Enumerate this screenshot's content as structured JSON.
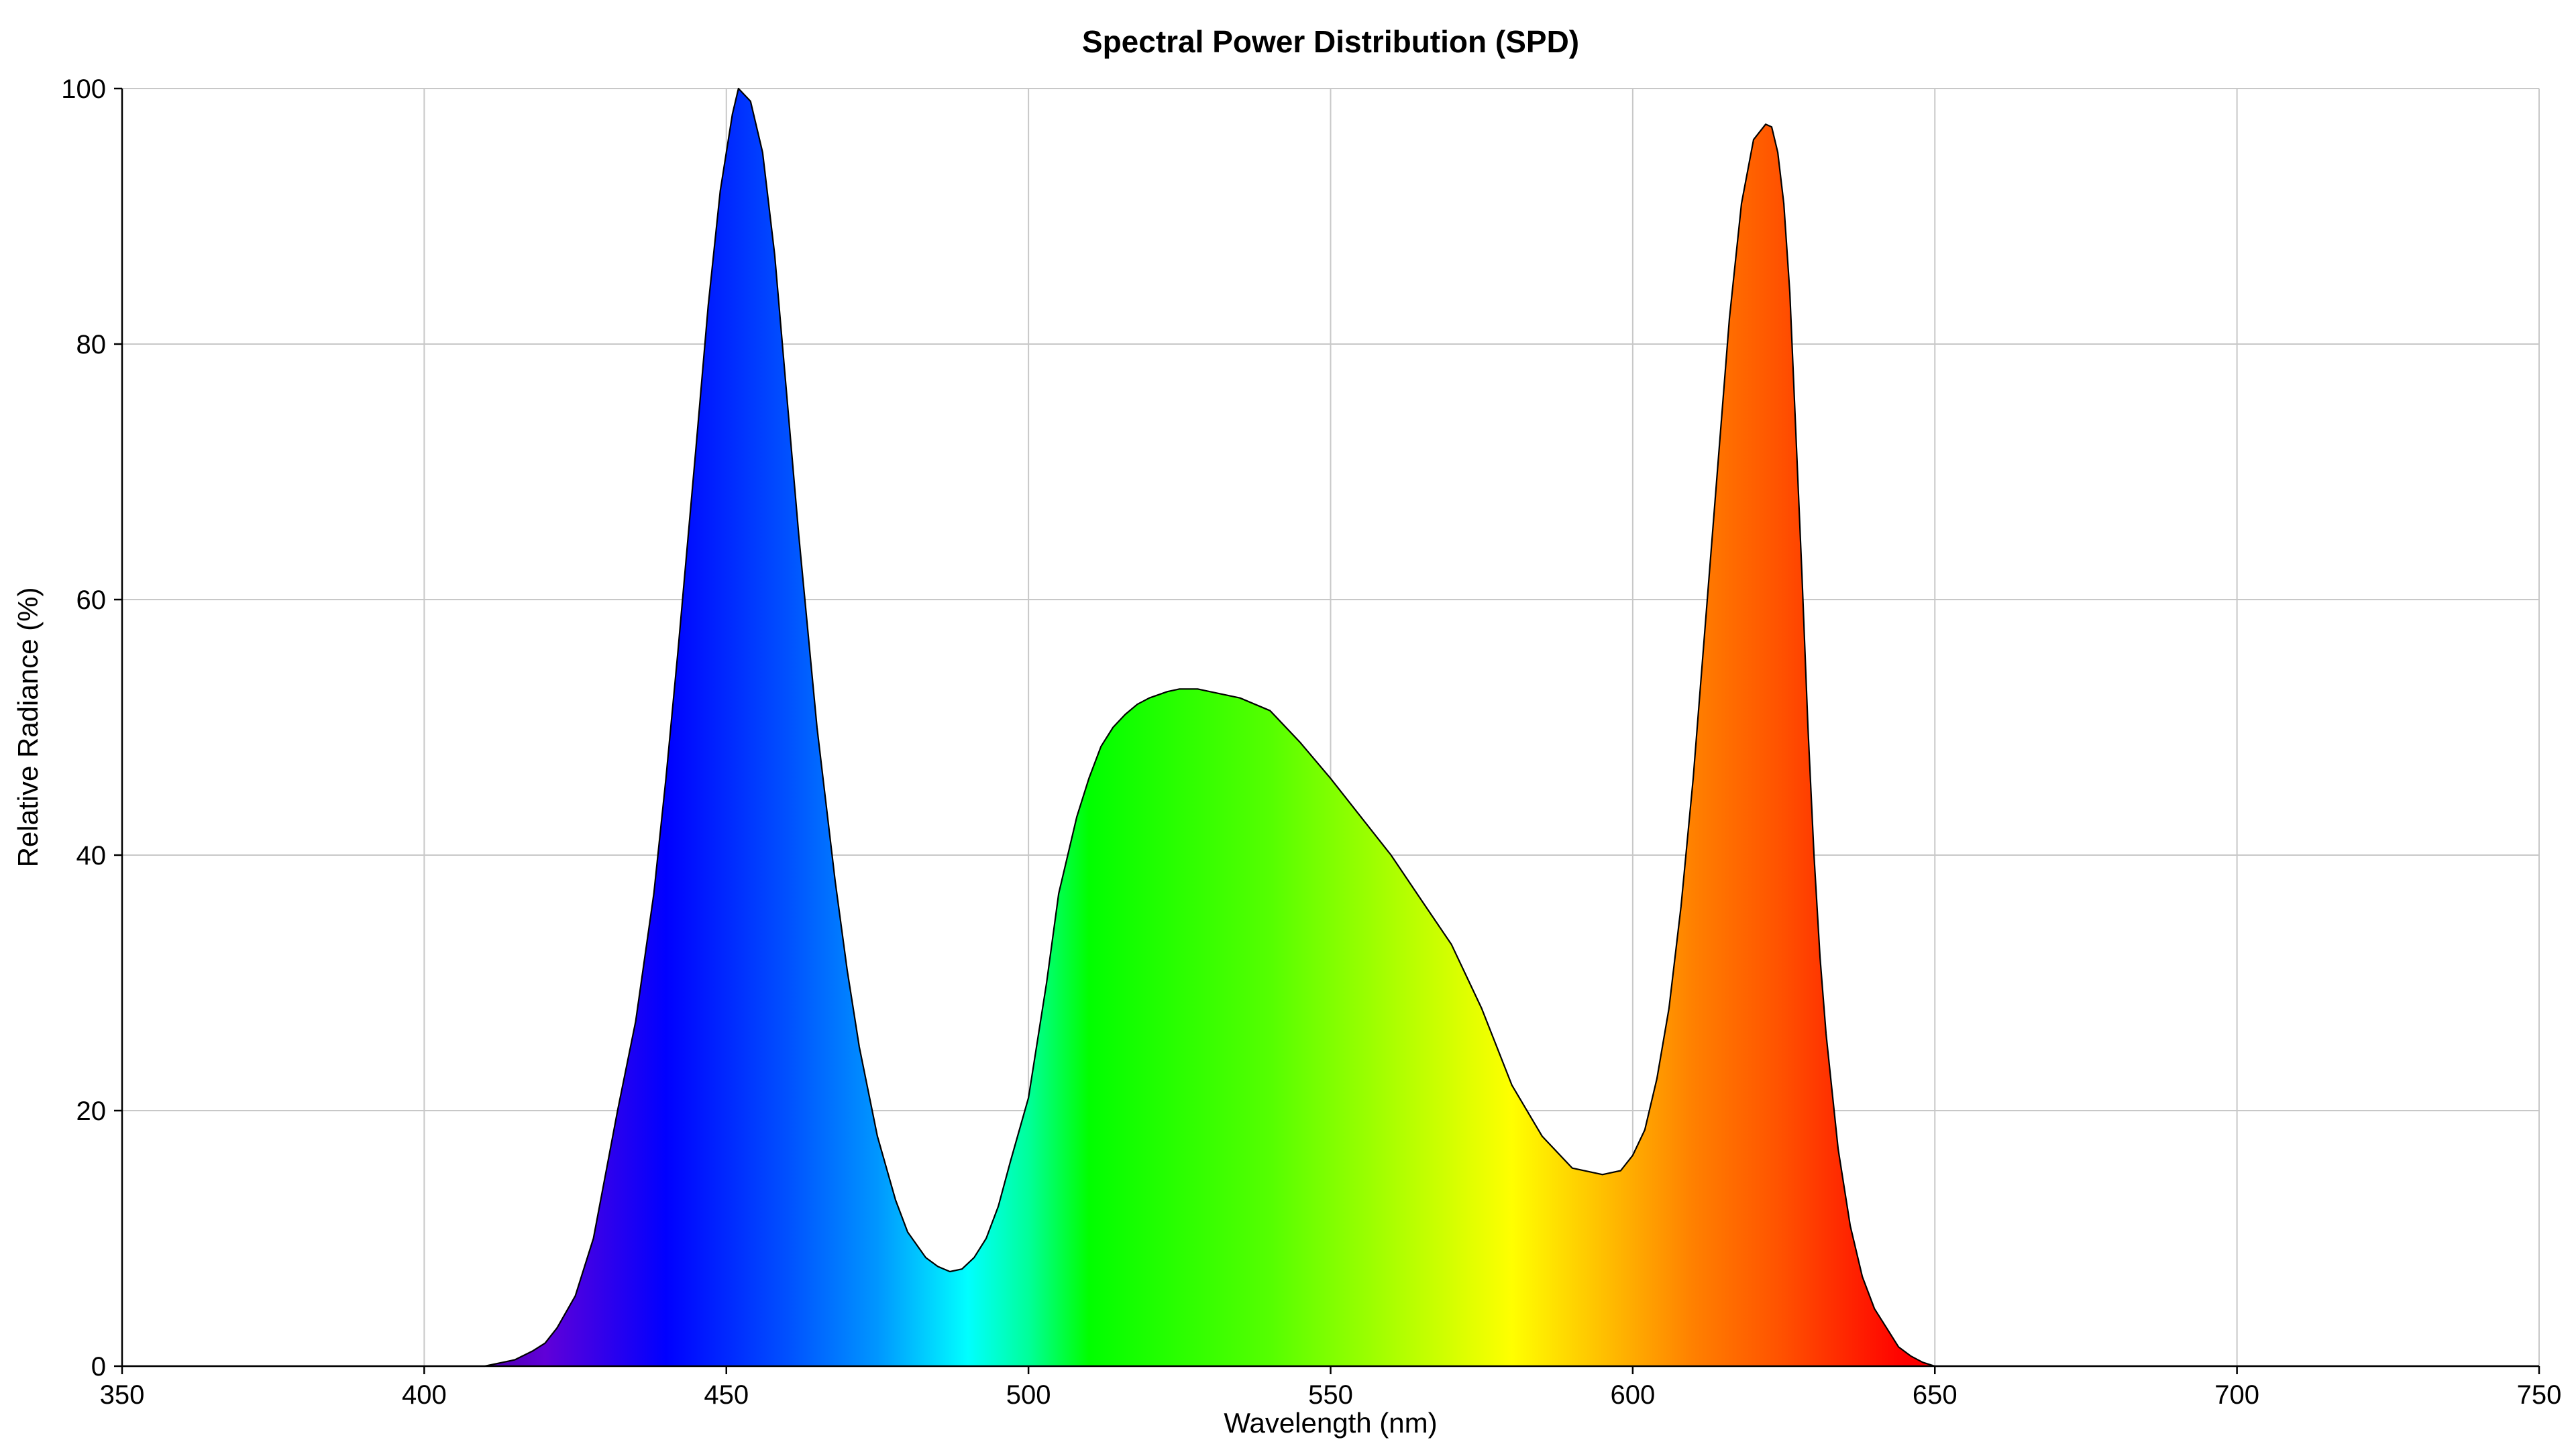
{
  "chart_data": {
    "type": "area",
    "title": "Spectral Power Distribution (SPD)",
    "xlabel": "Wavelength (nm)",
    "ylabel": "Relative Radiance (%)",
    "xlim": [
      350,
      750
    ],
    "ylim": [
      0,
      100
    ],
    "xticks": [
      "350",
      "400",
      "450",
      "500",
      "550",
      "600",
      "650",
      "700",
      "750"
    ],
    "yticks": [
      "0",
      "20",
      "40",
      "60",
      "80",
      "100"
    ],
    "grid": true,
    "legend": "none",
    "fill": "visible-spectrum-gradient",
    "outline_color": "#000000",
    "grid_color": "#c8c8c8",
    "x": [
      350,
      400,
      405,
      410,
      415,
      418,
      420,
      422,
      425,
      428,
      430,
      432,
      435,
      438,
      440,
      442,
      445,
      447,
      449,
      451,
      452,
      454,
      456,
      458,
      460,
      462,
      465,
      468,
      470,
      472,
      475,
      478,
      480,
      483,
      485,
      487,
      489,
      491,
      493,
      495,
      497,
      500,
      503,
      505,
      508,
      510,
      512,
      514,
      516,
      518,
      520,
      523,
      525,
      528,
      530,
      535,
      540,
      545,
      550,
      555,
      560,
      565,
      570,
      575,
      580,
      585,
      590,
      595,
      598,
      600,
      602,
      604,
      606,
      608,
      610,
      612,
      614,
      616,
      618,
      620,
      622,
      623,
      624,
      625,
      626,
      627,
      628,
      629,
      630,
      631,
      632,
      634,
      636,
      638,
      640,
      642,
      644,
      646,
      648,
      650,
      655,
      660,
      665,
      670,
      675,
      750
    ],
    "values": [
      0,
      0,
      0,
      0,
      0.5,
      1.2,
      1.8,
      3,
      5.5,
      10,
      15,
      20,
      27,
      37,
      46,
      56,
      72,
      83,
      92,
      98,
      100,
      99,
      95,
      87,
      76,
      65,
      50,
      38,
      31,
      25,
      18,
      13,
      10.5,
      8.5,
      7.8,
      7.4,
      7.6,
      8.5,
      10,
      12.5,
      16,
      21,
      30,
      37,
      43,
      46,
      48.5,
      50,
      51,
      51.8,
      52.3,
      52.8,
      53,
      53,
      52.8,
      52.3,
      51.3,
      48.8,
      46,
      43,
      40,
      36.5,
      33,
      28,
      22,
      18,
      15.5,
      15,
      15.3,
      16.5,
      18.5,
      22.5,
      28,
      36,
      46,
      58,
      70,
      82,
      91,
      96,
      97.2,
      97,
      95,
      91,
      84,
      73,
      62,
      50,
      40,
      32,
      26,
      17,
      11,
      7,
      4.5,
      3,
      1.5,
      0.8,
      0.3,
      0,
      0,
      0,
      0,
      0,
      0,
      0
    ]
  }
}
